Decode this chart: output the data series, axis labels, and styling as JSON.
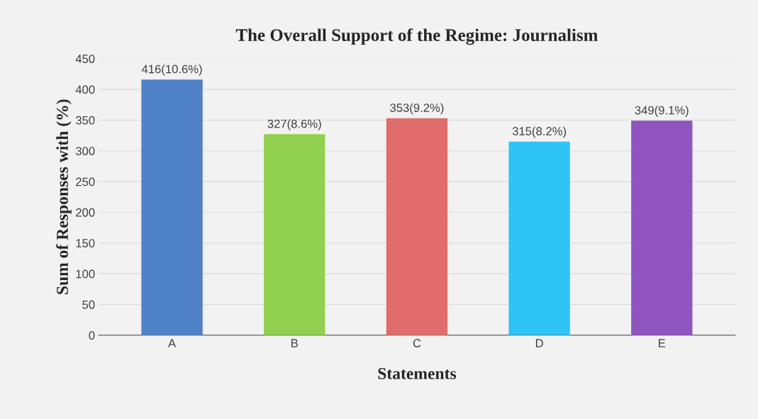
{
  "chart_data": {
    "type": "bar",
    "title": "The Overall Support of the Regime: Journalism",
    "xlabel": "Statements",
    "ylabel": "Sum of Responses with (%)",
    "categories": [
      "A",
      "B",
      "C",
      "D",
      "E"
    ],
    "values": [
      416,
      327,
      353,
      315,
      349
    ],
    "value_labels": [
      "416(10.6%)",
      "327(8.6%)",
      "353(9.2%)",
      "315(8.2%)",
      "349(9.1%)"
    ],
    "colors": [
      "#4f81c7",
      "#92d050",
      "#e06c6c",
      "#2ec4f5",
      "#9054c0"
    ],
    "ylim": [
      0,
      450
    ],
    "yticks": [
      0,
      50,
      100,
      150,
      200,
      250,
      300,
      350,
      400,
      450
    ],
    "grid": "y",
    "legend": false
  }
}
